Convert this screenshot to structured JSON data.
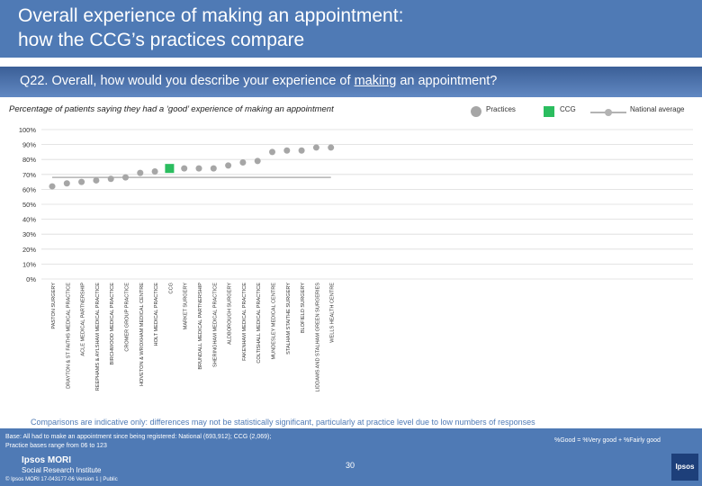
{
  "header": {
    "title_line1": "Overall experience of making an appointment:",
    "title_line2": "how the CCG’s practices compare"
  },
  "question": {
    "prefix": "Q22. Overall, how would you describe your experience of ",
    "underlined": "making",
    "suffix": " an appointment?"
  },
  "subtitle": "Percentage of patients saying they had a ‘good’ experience of making an appointment",
  "legend": {
    "practices": "Practices",
    "ccg": "CCG",
    "national": "National average"
  },
  "colors": {
    "header": "#4f7ab5",
    "practice": "#a6a6a6",
    "ccg": "#2bbd5f",
    "national": "#b3b3b3",
    "grid": "#dcdcdc"
  },
  "chart_data": {
    "type": "scatter",
    "title": "Q22. Overall, how would you describe your experience of making an appointment?",
    "ylabel": "Percentage of patients saying they had a ‘good’ experience of making an appointment",
    "ylim": [
      0,
      100
    ],
    "yticks": [
      "0%",
      "10%",
      "20%",
      "30%",
      "40%",
      "50%",
      "60%",
      "70%",
      "80%",
      "90%",
      "100%"
    ],
    "categories": [
      "PASTON SURGERY",
      "DRAYTON & ST FAITHS MEDICAL PRACTICE",
      "ACLE MEDICAL PARTNERSHIP",
      "REEPHAMS & AYLSHAM MEDICAL PRACTICE",
      "BIRCHWOOD MEDICAL PRACTICE",
      "CROMER GROUP PRACTICE",
      "HOVETON & WROXHAM MEDICAL CENTRE",
      "HOLT MEDICAL PRACTICE",
      "CCG",
      "MARKET SURGERY",
      "BRUNDALL MEDICAL PARTNERSHIP",
      "SHERINGHAM MEDICAL PRACTICE",
      "ALDBOROUGH SURGERY",
      "FAKENHAM MEDICAL PRACTICE",
      "COLTISHALL MEDICAL PRACTICE",
      "MUNDESLEY MEDICAL CENTRE",
      "STALHAM STAITHE SURGERY",
      "BLOFIELD SURGERY",
      "LIDDAMS AND STALHAM GREEN SURGERIES",
      "WELLS HEALTH CENTRE"
    ],
    "series": [
      {
        "name": "Practices",
        "values": [
          62,
          64,
          65,
          66,
          67,
          68,
          71,
          72,
          null,
          74,
          74,
          74,
          76,
          78,
          79,
          85,
          86,
          86,
          88,
          88
        ]
      },
      {
        "name": "CCG",
        "values": [
          null,
          null,
          null,
          null,
          null,
          null,
          null,
          null,
          74,
          null,
          null,
          null,
          null,
          null,
          null,
          null,
          null,
          null,
          null,
          null
        ]
      },
      {
        "name": "National average",
        "values": [
          68,
          68,
          68,
          68,
          68,
          68,
          68,
          68,
          68,
          68,
          68,
          68,
          68,
          68,
          68,
          68,
          68,
          68,
          68,
          68
        ]
      }
    ]
  },
  "comparisons": "Comparisons are indicative only: differences may not be statistically significant, particularly at practice level due to low numbers of responses",
  "footer": {
    "base_line1": "Base: All had to make an appointment since being registered: National (693,912); CCG (2,069);",
    "base_line2": "Practice bases range from 06 to 123",
    "key": "%Good = %Very good + %Fairly good",
    "page": "30",
    "logo1": "Ipsos MORI",
    "logo2": "Social Research Institute",
    "copyright": "© Ipsos MORI     17-043177-06 Version 1 | Public",
    "badge": "Ipsos"
  }
}
